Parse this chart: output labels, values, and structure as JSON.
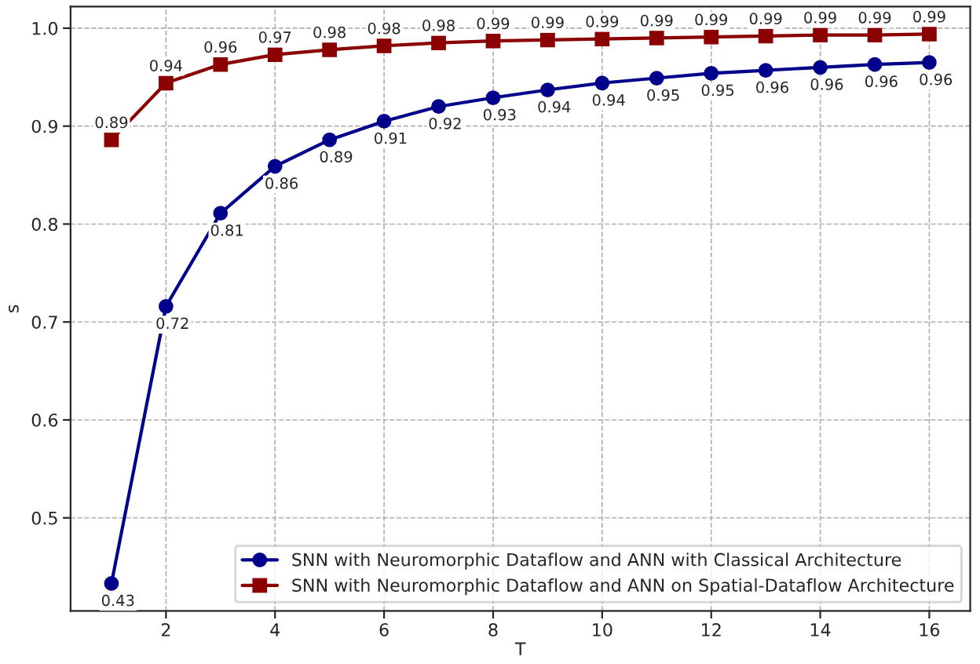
{
  "chart_data": {
    "type": "line",
    "xlabel": "T",
    "ylabel": "s",
    "x": [
      1,
      2,
      3,
      4,
      5,
      6,
      7,
      8,
      9,
      10,
      11,
      12,
      13,
      14,
      15,
      16
    ],
    "series": [
      {
        "name": "SNN with Neuromorphic Dataflow and ANN with Classical Architecture",
        "color": "#00008b",
        "marker": "circle",
        "values": [
          0.433,
          0.716,
          0.811,
          0.859,
          0.886,
          0.905,
          0.92,
          0.929,
          0.937,
          0.944,
          0.949,
          0.954,
          0.957,
          0.96,
          0.963,
          0.965
        ],
        "value_labels": [
          "0.43",
          "0.72",
          "0.81",
          "0.86",
          "0.89",
          "0.91",
          "0.92",
          "0.93",
          "0.94",
          "0.94",
          "0.95",
          "0.95",
          "0.96",
          "0.96",
          "0.96",
          "0.96"
        ]
      },
      {
        "name": "SNN with Neuromorphic Dataflow and ANN on Spatial-Dataflow Architecture",
        "color": "#8b0000",
        "marker": "square",
        "values": [
          0.886,
          0.944,
          0.963,
          0.973,
          0.978,
          0.982,
          0.985,
          0.987,
          0.988,
          0.989,
          0.99,
          0.991,
          0.992,
          0.993,
          0.993,
          0.994
        ],
        "value_labels": [
          "0.89",
          "0.94",
          "0.96",
          "0.97",
          "0.98",
          "0.98",
          "0.98",
          "0.99",
          "0.99",
          "0.99",
          "0.99",
          "0.99",
          "0.99",
          "0.99",
          "0.99",
          "0.99"
        ]
      }
    ],
    "xlim": [
      0.25,
      16.75
    ],
    "xticks": [
      2,
      4,
      6,
      8,
      10,
      12,
      14,
      16
    ],
    "ylim": [
      0.405,
      1.022
    ],
    "yticks": [
      0.5,
      0.6,
      0.7,
      0.8,
      0.9,
      {
        "value": 1.0,
        "label": "1.0"
      }
    ],
    "grid": true,
    "legend": "bottom right",
    "line_style": "solid"
  }
}
